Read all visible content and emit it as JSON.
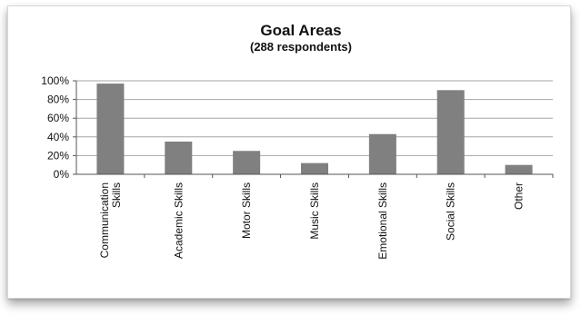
{
  "chart_data": {
    "type": "bar",
    "title": "Goal Areas",
    "subtitle": "(288 respondents)",
    "categories": [
      [
        "Communication",
        "Skills"
      ],
      [
        "Academic Skills"
      ],
      [
        "Motor Skills"
      ],
      [
        "Music Skills"
      ],
      [
        "Emotional Skills"
      ],
      [
        "Social Skills"
      ],
      [
        "Other"
      ]
    ],
    "values": [
      97,
      35,
      25,
      12,
      43,
      90,
      10
    ],
    "ylim": [
      0,
      100
    ],
    "ytick_labels": [
      "0%",
      "20%",
      "40%",
      "60%",
      "80%",
      "100%"
    ],
    "yticks": [
      0,
      20,
      40,
      60,
      80,
      100
    ],
    "grid": true,
    "legend": "none",
    "bar_color": "#808080",
    "grid_color": "#a6a6a6"
  }
}
